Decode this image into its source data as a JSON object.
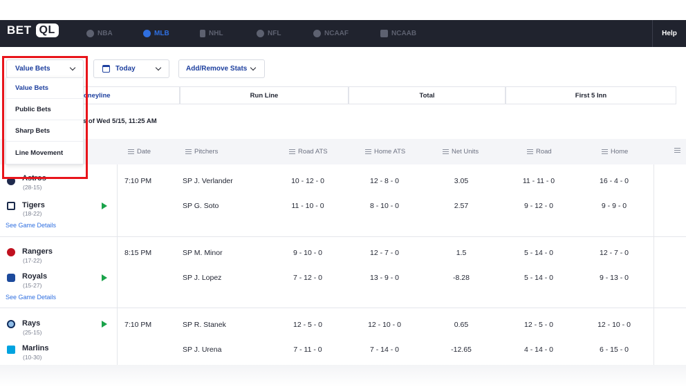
{
  "brand": {
    "bet": "BET",
    "ql": "QL"
  },
  "nav": [
    {
      "label": "NBA",
      "icon": "basketball-icon",
      "active": false
    },
    {
      "label": "MLB",
      "icon": "baseball-icon",
      "active": true
    },
    {
      "label": "NHL",
      "icon": "hockey-stick-icon",
      "active": false
    },
    {
      "label": "NFL",
      "icon": "football-icon",
      "active": false
    },
    {
      "label": "NCAAF",
      "icon": "helmet-icon",
      "active": false
    },
    {
      "label": "NCAAB",
      "icon": "building-icon",
      "active": false
    }
  ],
  "help_label": "Help",
  "filters": {
    "bets_type": "Value Bets",
    "date": "Today",
    "stats": "Add/Remove Stats"
  },
  "dropdown": [
    "Value Bets",
    "Public Bets",
    "Sharp Bets",
    "Line Movement"
  ],
  "bet_types": {
    "moneyline_partial": "oneyline",
    "run_line": "Run Line",
    "total": "Total",
    "first5": "First 5 Inn"
  },
  "updated_partial": "s of Wed 5/15, 11:25 AM",
  "columns": [
    "Date",
    "Pitchers",
    "Road ATS",
    "Home ATS",
    "Net Units",
    "Road",
    "Home"
  ],
  "details_link": "See Game Details",
  "games": [
    {
      "time": "7:10 PM",
      "teams": [
        {
          "name": "Astros",
          "record": "(28-15)",
          "pitcher": "SP J. Verlander",
          "road_ats": "10 - 12 - 0",
          "home_ats": "12 - 8 - 0",
          "net": "3.05",
          "road": "11 - 11 - 0",
          "home": "16 - 4 - 0",
          "play": false
        },
        {
          "name": "Tigers",
          "record": "(18-22)",
          "pitcher": "SP G. Soto",
          "road_ats": "11 - 10 - 0",
          "home_ats": "8 - 10 - 0",
          "net": "2.57",
          "road": "9 - 12 - 0",
          "home": "9 - 9 - 0",
          "play": true
        }
      ]
    },
    {
      "time": "8:15 PM",
      "teams": [
        {
          "name": "Rangers",
          "record": "(17-22)",
          "pitcher": "SP M. Minor",
          "road_ats": "9 - 10 - 0",
          "home_ats": "12 - 7 - 0",
          "net": "1.5",
          "road": "5 - 14 - 0",
          "home": "12 - 7 - 0",
          "play": false
        },
        {
          "name": "Royals",
          "record": "(15-27)",
          "pitcher": "SP J. Lopez",
          "road_ats": "7 - 12 - 0",
          "home_ats": "13 - 9 - 0",
          "net": "-8.28",
          "road": "5 - 14 - 0",
          "home": "9 - 13 - 0",
          "play": true
        }
      ]
    },
    {
      "time": "7:10 PM",
      "teams": [
        {
          "name": "Rays",
          "record": "(25-15)",
          "pitcher": "SP R. Stanek",
          "road_ats": "12 - 5 - 0",
          "home_ats": "12 - 10 - 0",
          "net": "0.65",
          "road": "12 - 5 - 0",
          "home": "12 - 10 - 0",
          "play": true
        },
        {
          "name": "Marlins",
          "record": "(10-30)",
          "pitcher": "SP J. Urena",
          "road_ats": "7 - 11 - 0",
          "home_ats": "7 - 14 - 0",
          "net": "-12.65",
          "road": "4 - 14 - 0",
          "home": "6 - 15 - 0",
          "play": false
        }
      ]
    }
  ],
  "colors": {
    "nav_bg": "#20232e",
    "accent": "#2f6fe0",
    "link_blue": "#1d3f9e",
    "play_green": "#1aa34a",
    "highlight_red": "#e8141b"
  }
}
